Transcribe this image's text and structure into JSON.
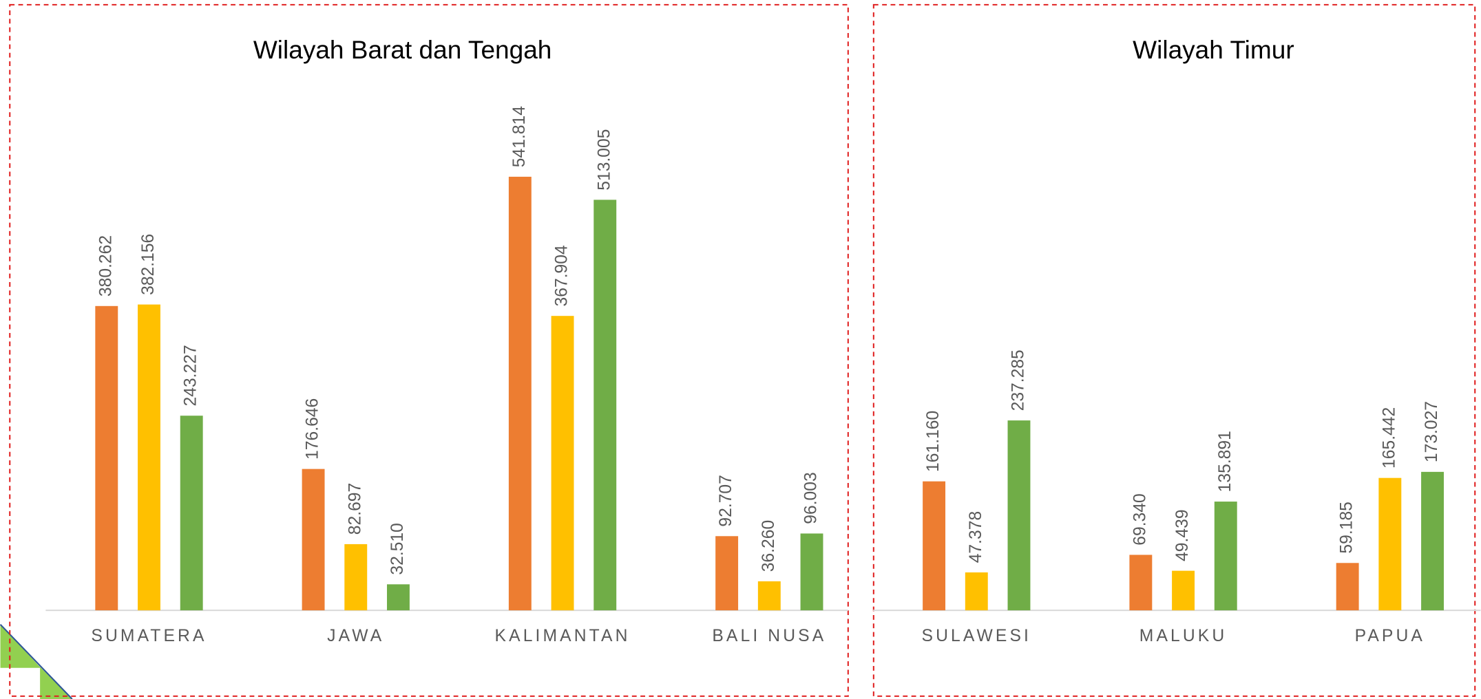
{
  "chart_data": [
    {
      "type": "bar",
      "title": "Wilayah Barat dan Tengah",
      "categories": [
        "SUMATERA",
        "JAWA",
        "KALIMANTAN",
        "BALI NUSA"
      ],
      "ylim": [
        0,
        600000
      ],
      "series": [
        {
          "color": "#ED7D31",
          "values": [
            380262,
            176646,
            541814,
            92707
          ],
          "value_labels": [
            "380.262",
            "176.646",
            "541.814",
            "92.707"
          ]
        },
        {
          "color": "#FFC000",
          "values": [
            382156,
            82697,
            367904,
            36260
          ],
          "value_labels": [
            "382.156",
            "82.697",
            "367.904",
            "36.260"
          ]
        },
        {
          "color": "#70AD47",
          "values": [
            243227,
            32510,
            513005,
            96003
          ],
          "value_labels": [
            "243.227",
            "32.510",
            "513.005",
            "96.003"
          ]
        }
      ]
    },
    {
      "type": "bar",
      "title": "Wilayah Timur",
      "categories": [
        "SULAWESI",
        "MALUKU",
        "PAPUA"
      ],
      "ylim": [
        0,
        600000
      ],
      "series": [
        {
          "color": "#ED7D31",
          "values": [
            161160,
            69340,
            59185
          ],
          "value_labels": [
            "161.160",
            "69.340",
            "59.185"
          ]
        },
        {
          "color": "#FFC000",
          "values": [
            47378,
            49439,
            165442
          ],
          "value_labels": [
            "47.378",
            "49.439",
            "165.442"
          ]
        },
        {
          "color": "#70AD47",
          "values": [
            237285,
            135891,
            173027
          ],
          "value_labels": [
            "237.285",
            "135.891",
            "173.027"
          ]
        }
      ]
    }
  ]
}
